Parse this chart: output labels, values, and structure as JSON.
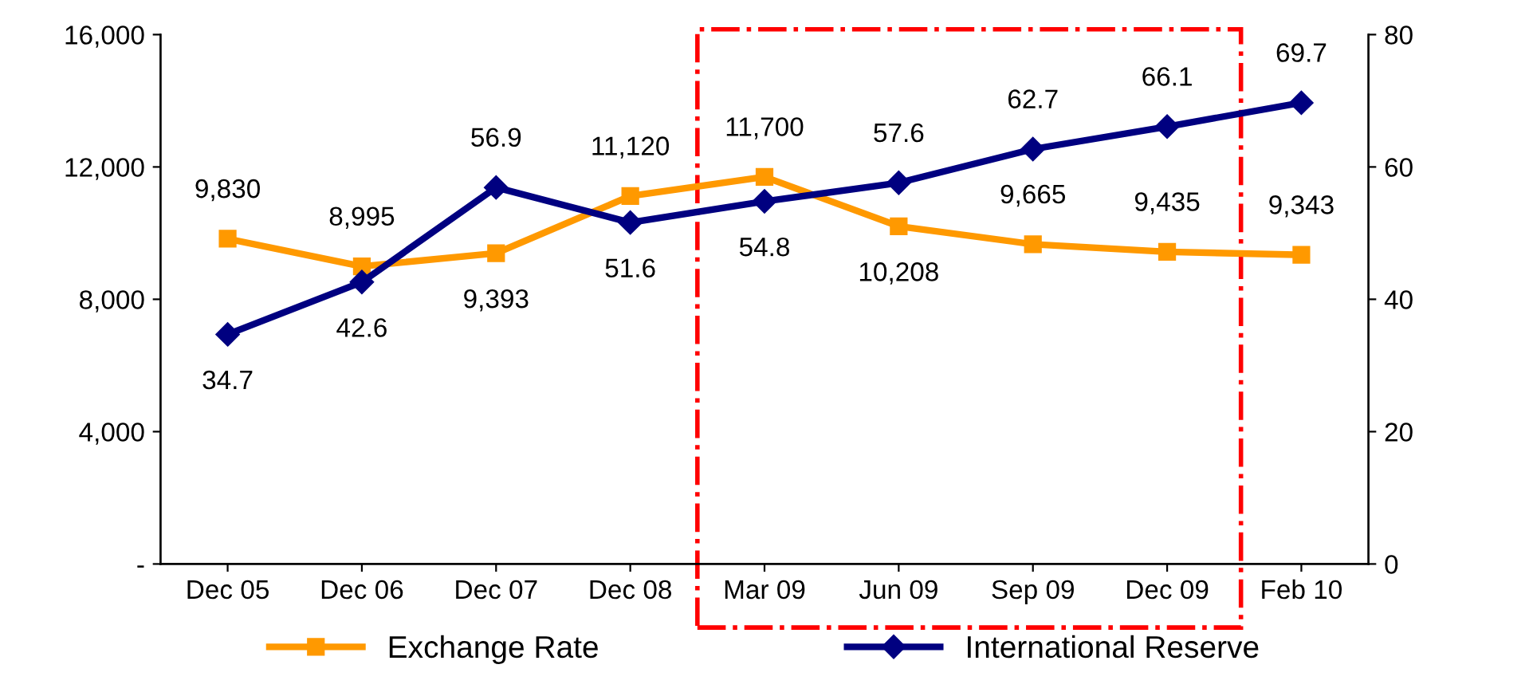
{
  "chart_data": {
    "type": "line",
    "categories": [
      "Dec 05",
      "Dec 06",
      "Dec 07",
      "Dec 08",
      "Mar 09",
      "Jun 09",
      "Sep 09",
      "Dec 09",
      "Feb 10"
    ],
    "series": [
      {
        "name": "Exchange Rate",
        "color": "#ff9900",
        "marker": "square",
        "values": [
          9830,
          8995,
          9393,
          11120,
          11700,
          10208,
          9665,
          9435,
          9343
        ],
        "value_labels": [
          "9,830",
          "8,995",
          "9,393",
          "11,120",
          "11,700",
          "10,208",
          "9,665",
          "9,435",
          "9,343"
        ]
      },
      {
        "name": "International Reserve",
        "color": "#000080",
        "marker": "diamond",
        "axis": "y2",
        "values": [
          34.7,
          42.6,
          56.9,
          51.6,
          54.8,
          57.6,
          62.7,
          66.1,
          69.7
        ]
      }
    ],
    "ylim": [
      0,
      16000
    ],
    "yticks": [
      {
        "value": 0,
        "label": "-"
      },
      {
        "value": 4000,
        "label": "4,000"
      },
      {
        "value": 8000,
        "label": "8,000"
      },
      {
        "value": 12000,
        "label": "12,000"
      },
      {
        "value": 16000,
        "label": "16,000"
      }
    ],
    "y2lim": [
      0,
      80
    ],
    "y2ticks": [
      0,
      20,
      40,
      60,
      80
    ],
    "data_labels": true,
    "grid": false,
    "legend": "bottom",
    "line_style": "solid"
  }
}
